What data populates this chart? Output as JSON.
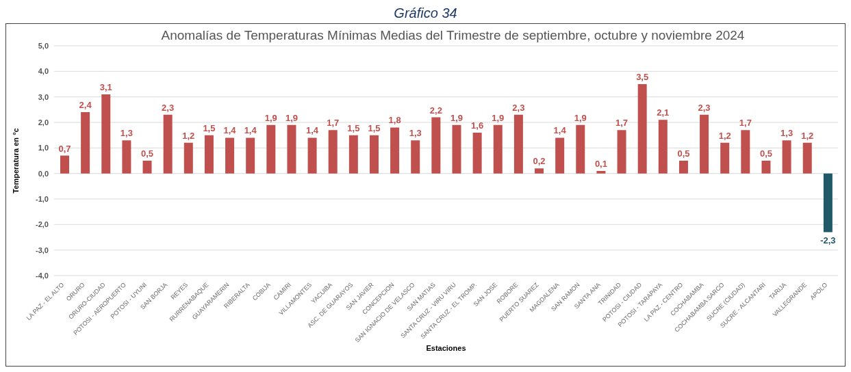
{
  "chart_data": {
    "type": "bar",
    "title": "Gráfico 34",
    "subtitle": "Anomalías de Temperaturas Mínimas Medias del Trimestre de septiembre, octubre y noviembre 2024",
    "xlabel": "Estaciones",
    "ylabel": "Temperatura en °c",
    "categories": [
      "LA PAZ - EL ALTO",
      "ORURO",
      "ORURO-CIUDAD",
      "POTOSI - AEROPUERTO",
      "POTOSI - UYUNI",
      "SAN BORJA",
      "REYES",
      "RURRENABAQUE",
      "GUAYARAMERIN",
      "RIBERALTA",
      "COBIJA",
      "CAMIRI",
      "VILLAMONTES",
      "YACUIBA",
      "ASC. DE GUARAYOS",
      "SAN JAVIER",
      "CONCEPCION",
      "SAN IGNACIO DE VELASCO",
      "SAN MATIAS",
      "SANTA CRUZ - VIRU VIRU",
      "SANTA CRUZ - EL TROMP.",
      "SAN JOSE",
      "ROBORE",
      "PUERTO SUAREZ",
      "MAGDALENA",
      "SAN RAMON",
      "SANTA ANA",
      "TRINIDAD",
      "POTOSI - CIUDAD",
      "POTOSI - TARAPAYA",
      "LA PAZ - CENTRO",
      "COCHABAMBA",
      "COCHABAMBA SARCO",
      "SUCRE (CIUDAD)",
      "SUCRE - ALCANTARI",
      "TARIJA",
      "VALLEGRANDE",
      "APOLO"
    ],
    "values": [
      0.7,
      2.4,
      3.1,
      1.3,
      0.5,
      2.3,
      1.2,
      1.5,
      1.4,
      1.4,
      1.9,
      1.9,
      1.4,
      1.7,
      1.5,
      1.5,
      1.8,
      1.3,
      2.2,
      1.9,
      1.6,
      1.9,
      2.3,
      0.2,
      1.4,
      1.9,
      0.1,
      1.7,
      3.5,
      2.1,
      0.5,
      2.3,
      1.2,
      1.7,
      0.5,
      1.3,
      1.2,
      -2.3
    ],
    "value_labels": [
      "0,7",
      "2,4",
      "3,1",
      "1,3",
      "0,5",
      "2,3",
      "1,2",
      "1,5",
      "1,4",
      "1,4",
      "1,9",
      "1,9",
      "1,4",
      "1,7",
      "1,5",
      "1,5",
      "1,8",
      "1,3",
      "2,2",
      "1,9",
      "1,6",
      "1,9",
      "2,3",
      "0,2",
      "1,4",
      "1,9",
      "0,1",
      "1,7",
      "3,5",
      "2,1",
      "0,5",
      "2,3",
      "1,2",
      "1,7",
      "0,5",
      "1,3",
      "1,2",
      "-2,3"
    ],
    "colors": [
      "#c0504d",
      "#c0504d",
      "#c0504d",
      "#c0504d",
      "#c0504d",
      "#c0504d",
      "#c0504d",
      "#c0504d",
      "#c0504d",
      "#c0504d",
      "#c0504d",
      "#c0504d",
      "#c0504d",
      "#c0504d",
      "#c0504d",
      "#c0504d",
      "#c0504d",
      "#c0504d",
      "#c0504d",
      "#c0504d",
      "#c0504d",
      "#c0504d",
      "#c0504d",
      "#c0504d",
      "#c0504d",
      "#c0504d",
      "#c0504d",
      "#c0504d",
      "#c0504d",
      "#c0504d",
      "#c0504d",
      "#c0504d",
      "#c0504d",
      "#c0504d",
      "#c0504d",
      "#c0504d",
      "#c0504d",
      "#215968"
    ],
    "ylim": [
      -4,
      5
    ],
    "yticks": [
      {
        "value": -4,
        "label": "-4,0"
      },
      {
        "value": -3,
        "label": "-3,0"
      },
      {
        "value": -2,
        "label": "-2,0"
      },
      {
        "value": -1,
        "label": "-1,0"
      },
      {
        "value": 0,
        "label": "0,0"
      },
      {
        "value": 1,
        "label": "1,0"
      },
      {
        "value": 2,
        "label": "2,0"
      },
      {
        "value": 3,
        "label": "3,0"
      },
      {
        "value": 4,
        "label": "4,0"
      },
      {
        "value": 5,
        "label": "5,0"
      }
    ],
    "grid": "y"
  }
}
